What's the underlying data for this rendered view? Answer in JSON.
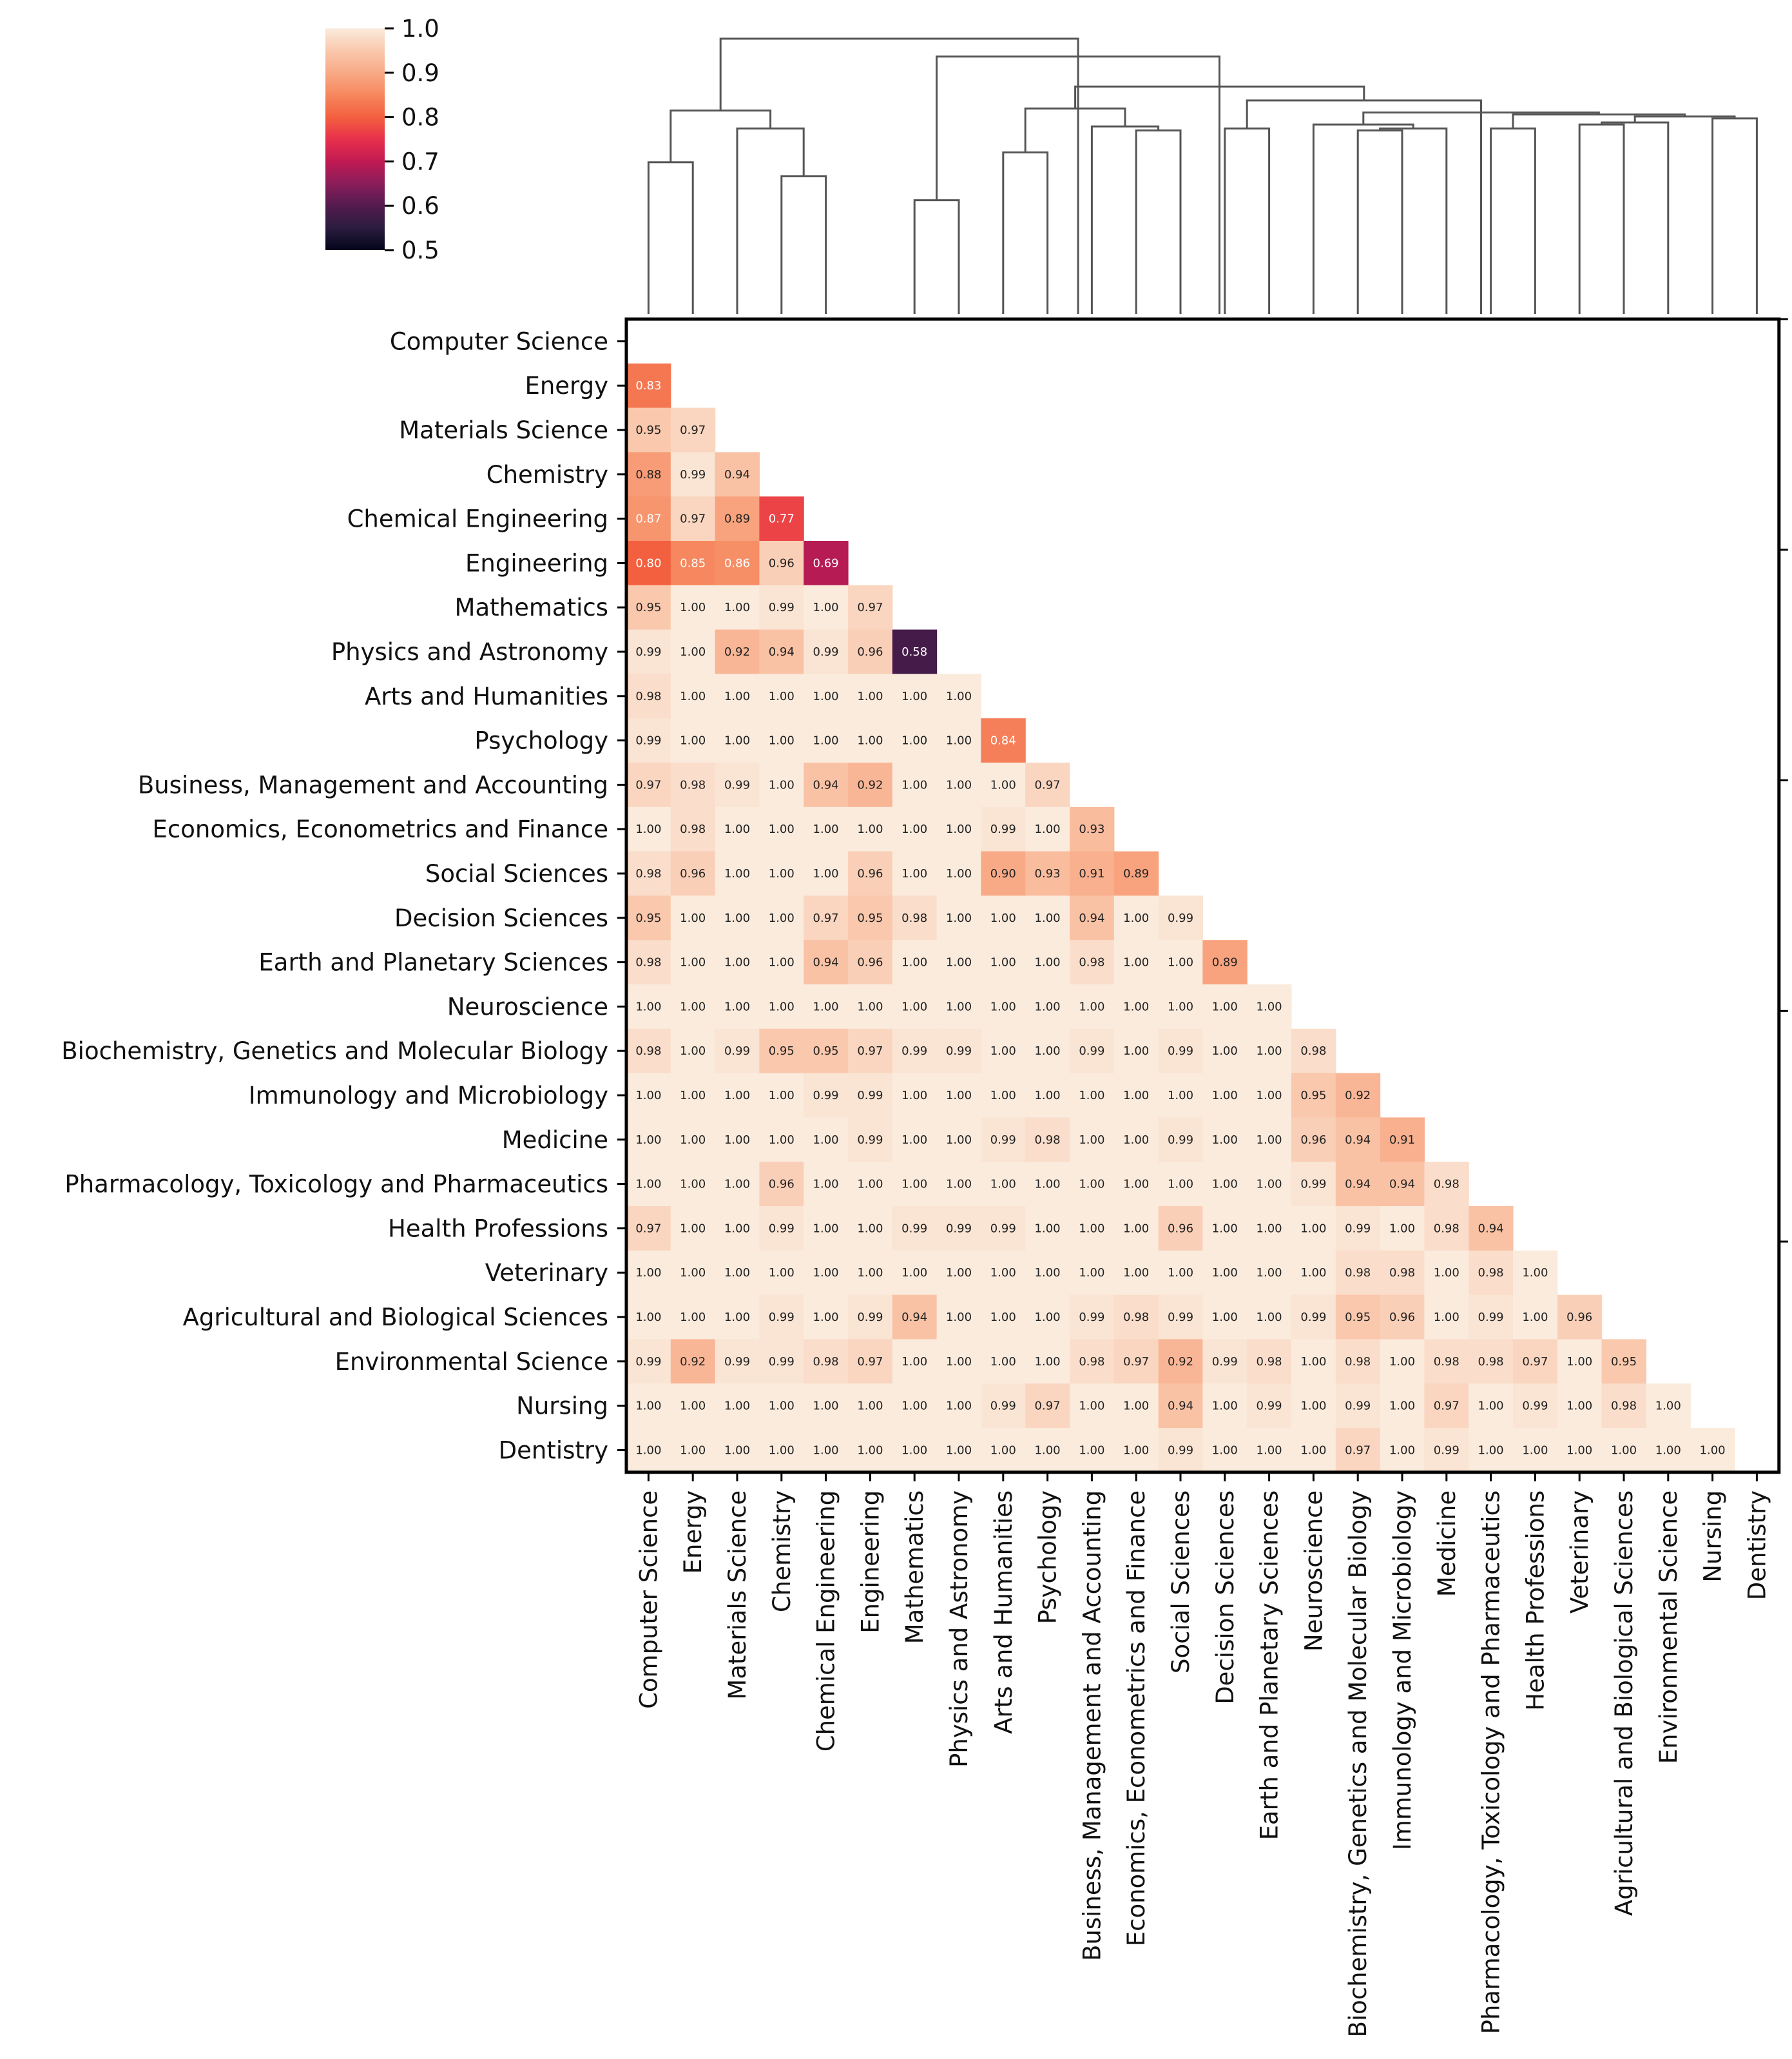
{
  "chart_data": {
    "type": "heatmap",
    "subtype": "clustered lower-triangular correlation matrix with dendrogram",
    "labels": [
      "Computer Science",
      "Energy",
      "Materials Science",
      "Chemistry",
      "Chemical Engineering",
      "Engineering",
      "Mathematics",
      "Physics and Astronomy",
      "Arts and Humanities",
      "Psychology",
      "Business, Management and Accounting",
      "Economics, Econometrics and Finance",
      "Social Sciences",
      "Decision Sciences",
      "Earth and Planetary Sciences",
      "Neuroscience",
      "Biochemistry, Genetics and Molecular Biology",
      "Immunology and Microbiology",
      "Medicine",
      "Pharmacology, Toxicology and Pharmaceutics",
      "Health Professions",
      "Veterinary",
      "Agricultural and Biological Sciences",
      "Environmental Science",
      "Nursing",
      "Dentistry"
    ],
    "rows": [
      [],
      [
        0.83
      ],
      [
        0.95,
        0.97
      ],
      [
        0.88,
        0.99,
        0.94
      ],
      [
        0.87,
        0.97,
        0.89,
        0.77
      ],
      [
        0.8,
        0.85,
        0.86,
        0.96,
        0.69
      ],
      [
        0.95,
        1.0,
        1.0,
        0.99,
        1.0,
        0.97
      ],
      [
        0.99,
        1.0,
        0.92,
        0.94,
        0.99,
        0.96,
        0.58
      ],
      [
        0.98,
        1.0,
        1.0,
        1.0,
        1.0,
        1.0,
        1.0,
        1.0
      ],
      [
        0.99,
        1.0,
        1.0,
        1.0,
        1.0,
        1.0,
        1.0,
        1.0,
        0.84
      ],
      [
        0.97,
        0.98,
        0.99,
        1.0,
        0.94,
        0.92,
        1.0,
        1.0,
        1.0,
        0.97
      ],
      [
        1.0,
        0.98,
        1.0,
        1.0,
        1.0,
        1.0,
        1.0,
        1.0,
        0.99,
        1.0,
        0.93
      ],
      [
        0.98,
        0.96,
        1.0,
        1.0,
        1.0,
        0.96,
        1.0,
        1.0,
        0.9,
        0.93,
        0.91,
        0.89
      ],
      [
        0.95,
        1.0,
        1.0,
        1.0,
        0.97,
        0.95,
        0.98,
        1.0,
        1.0,
        1.0,
        0.94,
        1.0,
        0.99
      ],
      [
        0.98,
        1.0,
        1.0,
        1.0,
        0.94,
        0.96,
        1.0,
        1.0,
        1.0,
        1.0,
        0.98,
        1.0,
        1.0,
        0.89
      ],
      [
        1.0,
        1.0,
        1.0,
        1.0,
        1.0,
        1.0,
        1.0,
        1.0,
        1.0,
        1.0,
        1.0,
        1.0,
        1.0,
        1.0,
        1.0
      ],
      [
        0.98,
        1.0,
        0.99,
        0.95,
        0.95,
        0.97,
        0.99,
        0.99,
        1.0,
        1.0,
        0.99,
        1.0,
        0.99,
        1.0,
        1.0,
        0.98
      ],
      [
        1.0,
        1.0,
        1.0,
        1.0,
        0.99,
        0.99,
        1.0,
        1.0,
        1.0,
        1.0,
        1.0,
        1.0,
        1.0,
        1.0,
        1.0,
        0.95,
        0.92
      ],
      [
        1.0,
        1.0,
        1.0,
        1.0,
        1.0,
        0.99,
        1.0,
        1.0,
        0.99,
        0.98,
        1.0,
        1.0,
        0.99,
        1.0,
        1.0,
        0.96,
        0.94,
        0.91
      ],
      [
        1.0,
        1.0,
        1.0,
        0.96,
        1.0,
        1.0,
        1.0,
        1.0,
        1.0,
        1.0,
        1.0,
        1.0,
        1.0,
        1.0,
        1.0,
        0.99,
        0.94,
        0.94,
        0.98
      ],
      [
        0.97,
        1.0,
        1.0,
        0.99,
        1.0,
        1.0,
        0.99,
        0.99,
        0.99,
        1.0,
        1.0,
        1.0,
        0.96,
        1.0,
        1.0,
        1.0,
        0.99,
        1.0,
        0.98,
        0.94
      ],
      [
        1.0,
        1.0,
        1.0,
        1.0,
        1.0,
        1.0,
        1.0,
        1.0,
        1.0,
        1.0,
        1.0,
        1.0,
        1.0,
        1.0,
        1.0,
        1.0,
        0.98,
        0.98,
        1.0,
        0.98,
        1.0
      ],
      [
        1.0,
        1.0,
        1.0,
        0.99,
        1.0,
        0.99,
        0.94,
        1.0,
        1.0,
        1.0,
        0.99,
        0.98,
        0.99,
        1.0,
        1.0,
        0.99,
        0.95,
        0.96,
        1.0,
        0.99,
        1.0,
        0.96
      ],
      [
        0.99,
        0.92,
        0.99,
        0.99,
        0.98,
        0.97,
        1.0,
        1.0,
        1.0,
        1.0,
        0.98,
        0.97,
        0.92,
        0.99,
        0.98,
        1.0,
        0.98,
        1.0,
        0.98,
        0.98,
        0.97,
        1.0,
        0.95
      ],
      [
        1.0,
        1.0,
        1.0,
        1.0,
        1.0,
        1.0,
        1.0,
        1.0,
        0.99,
        0.97,
        1.0,
        1.0,
        0.94,
        1.0,
        0.99,
        1.0,
        0.99,
        1.0,
        0.97,
        1.0,
        0.99,
        1.0,
        0.98,
        1.0
      ],
      [
        1.0,
        1.0,
        1.0,
        1.0,
        1.0,
        1.0,
        1.0,
        1.0,
        1.0,
        1.0,
        1.0,
        1.0,
        0.99,
        1.0,
        1.0,
        1.0,
        0.97,
        1.0,
        0.99,
        1.0,
        1.0,
        1.0,
        1.0,
        1.0,
        1.0
      ]
    ],
    "colorbar": {
      "vmin": 0.5,
      "vmax": 1.0,
      "ticks": [
        "0.5",
        "0.6",
        "0.7",
        "0.8",
        "0.9",
        "1.0"
      ]
    },
    "dendrogram": [
      {
        "l": 0,
        "r": 1,
        "h": 0.76
      },
      {
        "l": 3,
        "r": 4,
        "h": 0.69
      },
      {
        "l": 2,
        "r": 3.5,
        "h": 0.93
      },
      {
        "l": 0.5,
        "r": 2.75,
        "h": 1.02
      },
      {
        "l": 6,
        "r": 7,
        "h": 0.57
      },
      {
        "l": 8,
        "r": 9,
        "h": 0.81
      },
      {
        "l": 11,
        "r": 12,
        "h": 0.92
      },
      {
        "l": 10,
        "r": 11.5,
        "h": 0.94
      },
      {
        "l": 8.5,
        "r": 10.75,
        "h": 1.03
      },
      {
        "l": 13,
        "r": 14,
        "h": 0.93
      },
      {
        "l": 16,
        "r": 17,
        "h": 0.92
      },
      {
        "l": 16.5,
        "r": 18,
        "h": 0.93
      },
      {
        "l": 15,
        "r": 17.25,
        "h": 0.95
      },
      {
        "l": 19,
        "r": 20,
        "h": 0.93
      },
      {
        "l": 21,
        "r": 22,
        "h": 0.95
      },
      {
        "l": 21.5,
        "r": 23,
        "h": 0.96
      },
      {
        "l": 24,
        "r": 25,
        "h": 0.98
      },
      {
        "l": 22.25,
        "r": 24.5,
        "h": 0.99
      },
      {
        "l": 19.5,
        "r": 23.375,
        "h": 1.0
      },
      {
        "l": 16.125,
        "r": 21.4375,
        "h": 1.01
      },
      {
        "l": 13.5,
        "r": 18.78,
        "h": 1.07
      },
      {
        "l": 9.625,
        "r": 16.14,
        "h": 1.14
      },
      {
        "l": 6.5,
        "r": 12.88,
        "h": 1.29
      },
      {
        "l": 1.625,
        "r": 9.69,
        "h": 1.38
      }
    ]
  }
}
